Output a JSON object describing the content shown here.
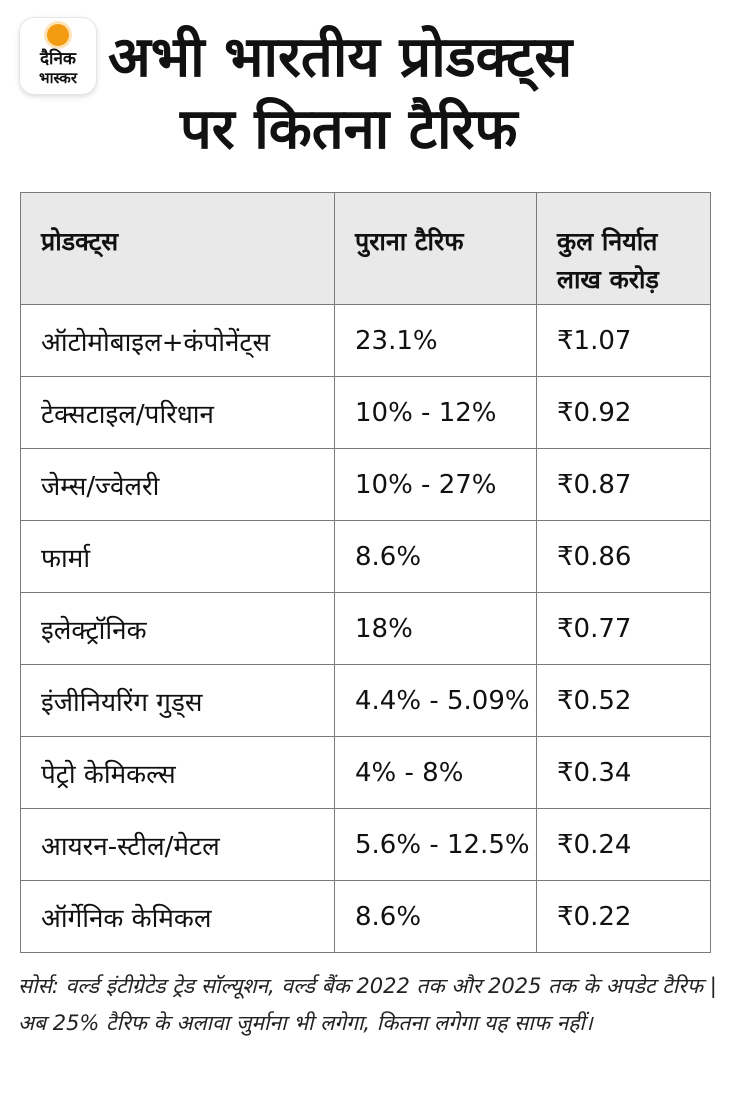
{
  "logo": {
    "line1": "दैनिक",
    "line2": "भास्कर"
  },
  "title": {
    "line1": "अभी भारतीय प्रोडक्ट्स",
    "line2": "पर कितना टैरिफ"
  },
  "chart_data": {
    "type": "table",
    "columns": [
      "प्रोडक्ट्स",
      "पुराना टैरिफ",
      "कुल निर्यात लाख करोड़"
    ],
    "rows": [
      [
        "ऑटोमोबाइल+कंपोनेंट्स",
        "23.1%",
        "₹1.07"
      ],
      [
        "टेक्सटाइल/परिधान",
        "10% - 12%",
        "₹0.92"
      ],
      [
        "जेम्स/ज्वेलरी",
        "10% - 27%",
        "₹0.87"
      ],
      [
        "फार्मा",
        "8.6%",
        "₹0.86"
      ],
      [
        "इलेक्ट्रॉनिक",
        "18%",
        "₹0.77"
      ],
      [
        "इंजीनियरिंग गुड्स",
        "4.4% - 5.09%",
        "₹0.52"
      ],
      [
        "पेट्रो केमिकल्स",
        "4% - 8%",
        "₹0.34"
      ],
      [
        "आयरन-स्टील/मेटल",
        "5.6% - 12.5%",
        "₹0.24"
      ],
      [
        "ऑर्गेनिक केमिकल",
        "8.6%",
        "₹0.22"
      ]
    ]
  },
  "header_lines": {
    "col3_line1": "कुल निर्यात",
    "col3_line2": "लाख करोड़"
  },
  "source": "सोर्स: वर्ल्ड इंटीग्रेटेड ट्रेड सॉल्यूशन, वर्ल्ड बैंक 2022 तक और 2025 तक के अपडेट टैरिफ | अब 25% टैरिफ के अलावा जुर्माना भी लगेगा, कितना लगेगा यह साफ नहीं।",
  "colors": {
    "header_bg": "#e9e9e9",
    "border": "#7a7a7a",
    "logo_accent": "#f39c12"
  }
}
